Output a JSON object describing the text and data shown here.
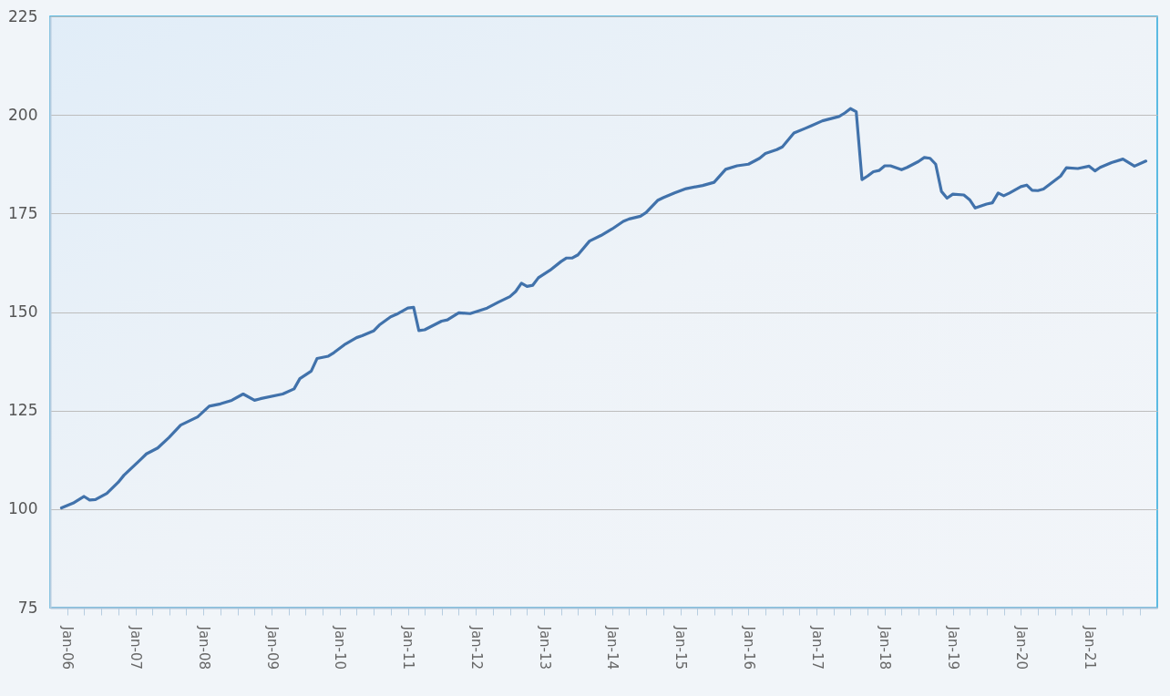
{
  "chart_data": {
    "type": "line",
    "x": [
      "2005-12",
      "2006-02",
      "2006-04",
      "2006-05",
      "2006-06",
      "2006-08",
      "2006-10",
      "2006-11",
      "2007-02",
      "2007-03",
      "2007-05",
      "2007-07",
      "2007-09",
      "2007-12",
      "2008-02",
      "2008-04",
      "2008-06",
      "2008-08",
      "2008-10",
      "2008-11",
      "2009-03",
      "2009-05",
      "2009-06",
      "2009-08",
      "2009-09",
      "2009-11",
      "2009-12",
      "2010-02",
      "2010-04",
      "2010-05",
      "2010-07",
      "2010-08",
      "2010-10",
      "2010-11",
      "2011-01",
      "2011-02",
      "2011-03",
      "2011-04",
      "2011-07",
      "2011-08",
      "2011-10",
      "2011-12",
      "2012-03",
      "2012-05",
      "2012-07",
      "2012-08",
      "2012-09",
      "2012-10",
      "2012-11",
      "2012-12",
      "2013-02",
      "2013-04",
      "2013-05",
      "2013-06",
      "2013-07",
      "2013-09",
      "2013-11",
      "2014-01",
      "2014-03",
      "2014-04",
      "2014-06",
      "2014-07",
      "2014-09",
      "2014-10",
      "2014-12",
      "2015-02",
      "2015-05",
      "2015-07",
      "2015-09",
      "2015-11",
      "2016-01",
      "2016-03",
      "2016-04",
      "2016-06",
      "2016-07",
      "2016-09",
      "2016-11",
      "2016-12",
      "2017-02",
      "2017-05",
      "2017-06",
      "2017-07",
      "2017-08",
      "2017-09",
      "2017-10",
      "2017-11",
      "2017-12",
      "2018-01",
      "2018-02",
      "2018-04",
      "2018-05",
      "2018-07",
      "2018-08",
      "2018-09",
      "2018-10",
      "2018-11",
      "2018-12",
      "2019-01",
      "2019-03",
      "2019-04",
      "2019-05",
      "2019-07",
      "2019-08",
      "2019-09",
      "2019-10",
      "2019-11",
      "2020-01",
      "2020-02",
      "2020-03",
      "2020-04",
      "2020-05",
      "2020-08",
      "2020-09",
      "2020-11",
      "2021-01",
      "2021-02",
      "2021-03",
      "2021-05",
      "2021-07",
      "2021-09",
      "2021-11"
    ],
    "series": [
      {
        "color": "#4172ab",
        "values": [
          100.3,
          101.5,
          103.2,
          102.3,
          102.4,
          104.0,
          106.8,
          108.6,
          112.7,
          114.0,
          115.5,
          118.2,
          121.3,
          123.4,
          126.1,
          126.7,
          127.6,
          129.2,
          127.6,
          128.0,
          129.2,
          130.5,
          133.1,
          135.0,
          138.2,
          138.8,
          139.7,
          141.9,
          143.5,
          144.0,
          145.2,
          146.7,
          148.8,
          149.4,
          151.0,
          151.2,
          145.3,
          145.5,
          147.7,
          148.0,
          149.8,
          149.6,
          151.0,
          152.5,
          153.9,
          155.2,
          157.3,
          156.5,
          156.8,
          158.7,
          160.6,
          162.8,
          163.7,
          163.7,
          164.5,
          168.0,
          169.4,
          171.1,
          173.0,
          173.6,
          174.3,
          175.2,
          178.3,
          179.0,
          180.2,
          181.3,
          182.1,
          182.9,
          186.2,
          187.1,
          187.5,
          189.0,
          190.2,
          191.2,
          191.9,
          195.4,
          196.6,
          197.2,
          198.5,
          199.6,
          200.5,
          201.6,
          200.8,
          183.6,
          184.5,
          185.6,
          185.9,
          187.1,
          187.1,
          186.1,
          186.7,
          188.2,
          189.2,
          189.0,
          187.5,
          180.6,
          178.9,
          179.9,
          179.7,
          178.5,
          176.4,
          177.4,
          177.7,
          180.2,
          179.5,
          180.2,
          181.8,
          182.2,
          180.9,
          180.8,
          181.2,
          184.5,
          186.6,
          186.4,
          187.0,
          185.8,
          186.7,
          187.9,
          188.8,
          187.0,
          188.3
        ]
      }
    ],
    "xlim": [
      "2005-10",
      "2022-01"
    ],
    "xticks": [
      {
        "value": "2006-01",
        "label": "Jan-06"
      },
      {
        "value": "2006-04",
        "label": null
      },
      {
        "value": "2006-07",
        "label": null
      },
      {
        "value": "2006-10",
        "label": null
      },
      {
        "value": "2007-01",
        "label": "Jan-07"
      },
      {
        "value": "2007-04",
        "label": null
      },
      {
        "value": "2007-07",
        "label": null
      },
      {
        "value": "2007-10",
        "label": null
      },
      {
        "value": "2008-01",
        "label": "Jan-08"
      },
      {
        "value": "2008-04",
        "label": null
      },
      {
        "value": "2008-07",
        "label": null
      },
      {
        "value": "2008-10",
        "label": null
      },
      {
        "value": "2009-01",
        "label": "Jan-09"
      },
      {
        "value": "2009-04",
        "label": null
      },
      {
        "value": "2009-07",
        "label": null
      },
      {
        "value": "2009-10",
        "label": null
      },
      {
        "value": "2010-01",
        "label": "Jan-10"
      },
      {
        "value": "2010-04",
        "label": null
      },
      {
        "value": "2010-07",
        "label": null
      },
      {
        "value": "2010-10",
        "label": null
      },
      {
        "value": "2011-01",
        "label": "Jan-11"
      },
      {
        "value": "2011-04",
        "label": null
      },
      {
        "value": "2011-07",
        "label": null
      },
      {
        "value": "2011-10",
        "label": null
      },
      {
        "value": "2012-01",
        "label": "Jan-12"
      },
      {
        "value": "2012-04",
        "label": null
      },
      {
        "value": "2012-07",
        "label": null
      },
      {
        "value": "2012-10",
        "label": null
      },
      {
        "value": "2013-01",
        "label": "Jan-13"
      },
      {
        "value": "2013-04",
        "label": null
      },
      {
        "value": "2013-07",
        "label": null
      },
      {
        "value": "2013-10",
        "label": null
      },
      {
        "value": "2014-01",
        "label": "Jan-14"
      },
      {
        "value": "2014-04",
        "label": null
      },
      {
        "value": "2014-07",
        "label": null
      },
      {
        "value": "2014-10",
        "label": null
      },
      {
        "value": "2015-01",
        "label": "Jan-15"
      },
      {
        "value": "2015-04",
        "label": null
      },
      {
        "value": "2015-07",
        "label": null
      },
      {
        "value": "2015-10",
        "label": null
      },
      {
        "value": "2016-01",
        "label": "Jan-16"
      },
      {
        "value": "2016-04",
        "label": null
      },
      {
        "value": "2016-07",
        "label": null
      },
      {
        "value": "2016-10",
        "label": null
      },
      {
        "value": "2017-01",
        "label": "Jan-17"
      },
      {
        "value": "2017-04",
        "label": null
      },
      {
        "value": "2017-07",
        "label": null
      },
      {
        "value": "2017-10",
        "label": null
      },
      {
        "value": "2018-01",
        "label": "Jan-18"
      },
      {
        "value": "2018-04",
        "label": null
      },
      {
        "value": "2018-07",
        "label": null
      },
      {
        "value": "2018-10",
        "label": null
      },
      {
        "value": "2019-01",
        "label": "Jan-19"
      },
      {
        "value": "2019-04",
        "label": null
      },
      {
        "value": "2019-07",
        "label": null
      },
      {
        "value": "2019-10",
        "label": null
      },
      {
        "value": "2020-01",
        "label": "Jan-20"
      },
      {
        "value": "2020-04",
        "label": null
      },
      {
        "value": "2020-07",
        "label": null
      },
      {
        "value": "2020-10",
        "label": null
      },
      {
        "value": "2021-01",
        "label": "Jan-21"
      },
      {
        "value": "2021-04",
        "label": null
      },
      {
        "value": "2021-07",
        "label": null
      },
      {
        "value": "2021-10",
        "label": null
      }
    ],
    "ylim": [
      75,
      225
    ],
    "yticks": [
      75,
      100,
      125,
      150,
      175,
      200,
      225
    ],
    "grid": "y"
  }
}
